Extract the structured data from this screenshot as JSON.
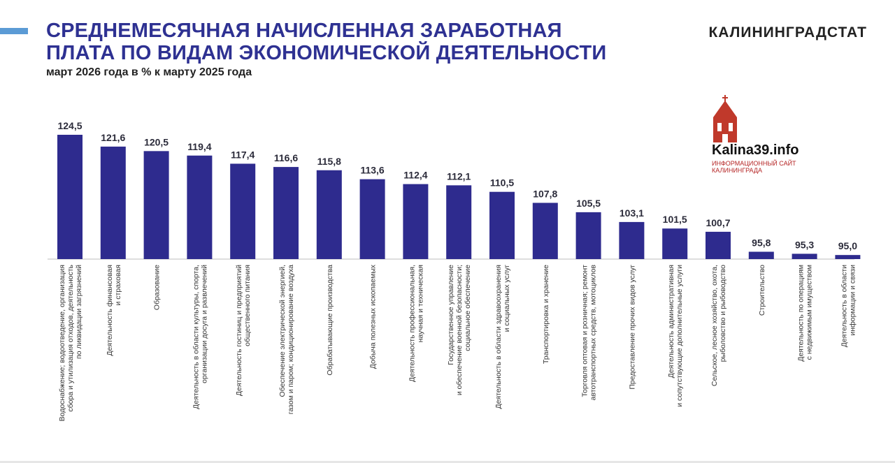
{
  "header": {
    "title_line1": "СРЕДНЕМЕСЯЧНАЯ НАЧИСЛЕННАЯ ЗАРАБОТНАЯ",
    "title_line2": "ПЛАТА ПО ВИДАМ ЭКОНОМИЧЕСКОЙ ДЕЯТЕЛЬНОСТИ",
    "subtitle": "март 2026 года в % к марту 2025 года",
    "brand": "КАЛИНИНГРАДСТАТ"
  },
  "watermark": {
    "site_name": "Kalina39.info",
    "tagline": "ИНФОРМАЦИОННЫЙ САЙТ КАЛИНИНГРАДА",
    "icon": "church-icon"
  },
  "colors": {
    "bar": "#2e2b8e",
    "title": "#2e3192",
    "accent": "#5b9bd5",
    "logo": "#c0392b"
  },
  "chart_data": {
    "type": "bar",
    "title": "СРЕДНЕМЕСЯЧНАЯ НАЧИСЛЕННАЯ ЗАРАБОТНАЯ ПЛАТА ПО ВИДАМ ЭКОНОМИЧЕСКОЙ ДЕЯТЕЛЬНОСТИ",
    "subtitle": "март 2026 года в % к марту 2025 года",
    "categories": [
      [
        "Водоснабжение; водоотведение, организация",
        "сбора и утилизация отходов, деятельность",
        "по ликвидации загрязнений"
      ],
      [
        "Деятельность финансовая",
        "и страховая"
      ],
      [
        "Образование"
      ],
      [
        "Деятельность в области культуры, спорта,",
        "организации досуга и развлечений"
      ],
      [
        "Деятельность гостиниц и предприятий",
        "общественного питания"
      ],
      [
        "Обеспечение электрической энергией,",
        "газом и паром; кондиционирование воздуха"
      ],
      [
        "Обрабатывающие производства"
      ],
      [
        "Добыча полезных ископаемых"
      ],
      [
        "Деятельность профессиональная,",
        "научная и техническая"
      ],
      [
        "Государственное управление",
        "и обеспечение военной безопасности;",
        "социальное обеспечение"
      ],
      [
        "Деятельность в области здравоохранения",
        "и социальных услуг"
      ],
      [
        "Транспортировка и хранение"
      ],
      [
        "Торговля оптовая и розничная; ремонт",
        "автотранспортных средств, мотоциклов"
      ],
      [
        "Предоставление прочих видов услуг"
      ],
      [
        "Деятельность административная",
        "и сопутствующие дополнительные услуги"
      ],
      [
        "Сельское, лесное хозяйство, охота,",
        "рыболовство и рыбоводство"
      ],
      [
        "Строительство"
      ],
      [
        "Деятельность по операциям",
        "с недвижимым имуществом"
      ],
      [
        "Деятельность в области",
        "информации и связи"
      ]
    ],
    "values": [
      124.5,
      121.6,
      120.5,
      119.4,
      117.4,
      116.6,
      115.8,
      113.6,
      112.4,
      112.1,
      110.5,
      107.8,
      105.5,
      103.1,
      101.5,
      100.7,
      95.8,
      95.3,
      95.0
    ],
    "value_labels": [
      "124,5",
      "121,6",
      "120,5",
      "119,4",
      "117,4",
      "116,6",
      "115,8",
      "113,6",
      "112,4",
      "112,1",
      "110,5",
      "107,8",
      "105,5",
      "103,1",
      "101,5",
      "100,7",
      "95,8",
      "95,3",
      "95,0"
    ],
    "ylim": [
      94,
      124.5
    ],
    "grid": false,
    "legend": "none"
  }
}
